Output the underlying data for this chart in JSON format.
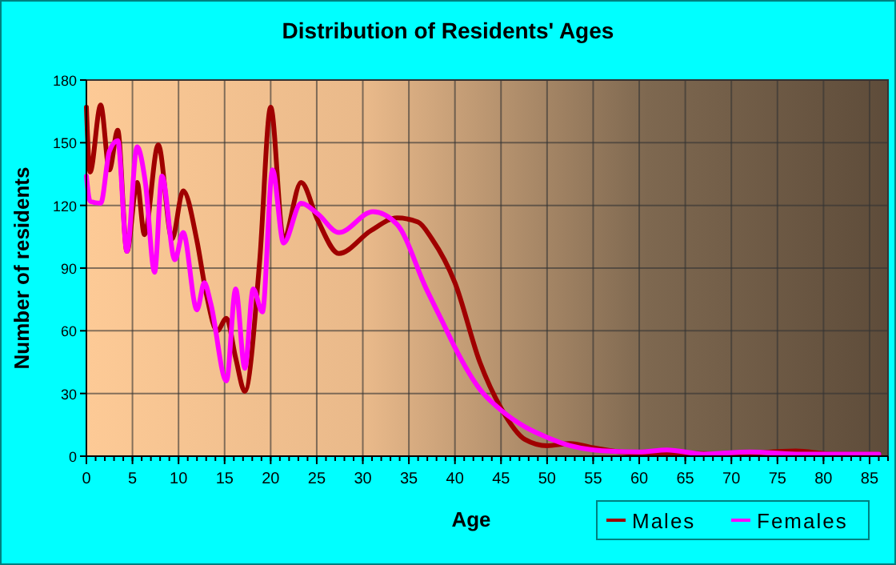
{
  "chart_data": {
    "type": "line",
    "title": "Distribution of Residents' Ages",
    "xlabel": "Age",
    "ylabel": "Number of residents",
    "xlim": [
      0,
      87
    ],
    "ylim": [
      0,
      180
    ],
    "xticks": [
      0,
      5,
      10,
      15,
      20,
      25,
      30,
      35,
      40,
      45,
      50,
      55,
      60,
      65,
      70,
      75,
      80,
      85
    ],
    "yticks": [
      0,
      30,
      60,
      90,
      120,
      150,
      180
    ],
    "grid": true,
    "legend": "bottom right",
    "marker": "none",
    "line_style": "solid",
    "series": [
      {
        "name": "Males",
        "color": "#a00000",
        "x": [
          0,
          0.4,
          1.55,
          2.5,
          3.4,
          4.4,
          5.5,
          6.3,
          7.8,
          9.3,
          10.5,
          12,
          13,
          14.2,
          15.2,
          16.2,
          17.2,
          18.8,
          20,
          21.4,
          23.3,
          25.1,
          27.4,
          30.9,
          33.7,
          36,
          37.5,
          40,
          42.7,
          45,
          47.6,
          50,
          52.5,
          55,
          60,
          65,
          70,
          77,
          81,
          86
        ],
        "values": [
          167,
          136,
          168,
          137,
          156,
          98,
          131,
          106,
          149,
          104,
          127,
          103,
          78,
          60,
          66,
          47,
          31,
          93,
          167,
          104,
          131,
          113,
          97,
          108,
          114,
          112,
          104,
          83,
          45,
          23,
          8,
          5,
          6,
          4,
          1.3,
          1.3,
          1,
          2.5,
          1,
          1
        ]
      },
      {
        "name": "Females",
        "color": "#ff00ff",
        "x": [
          0,
          0.4,
          1.55,
          2.5,
          3.4,
          4.4,
          5.5,
          6.4,
          7.4,
          8.2,
          9.6,
          10.5,
          12,
          12.8,
          13.5,
          15.2,
          16.2,
          17.2,
          18.1,
          19.1,
          20.2,
          21.4,
          23.3,
          25.1,
          27.4,
          31.1,
          33.7,
          36.9,
          38.9,
          40,
          42.7,
          45,
          47.6,
          50,
          52.5,
          55,
          60,
          63,
          67,
          72,
          77,
          81,
          86
        ],
        "values": [
          134,
          122,
          121,
          146,
          151,
          98,
          148,
          131,
          88,
          134,
          94,
          107,
          70,
          83,
          73,
          36,
          80,
          42,
          80,
          69,
          137,
          102,
          121,
          116,
          107,
          117,
          111,
          80,
          62,
          52,
          32,
          22,
          14,
          9,
          5,
          3,
          2,
          3,
          1,
          2,
          1,
          1,
          1
        ]
      }
    ]
  }
}
